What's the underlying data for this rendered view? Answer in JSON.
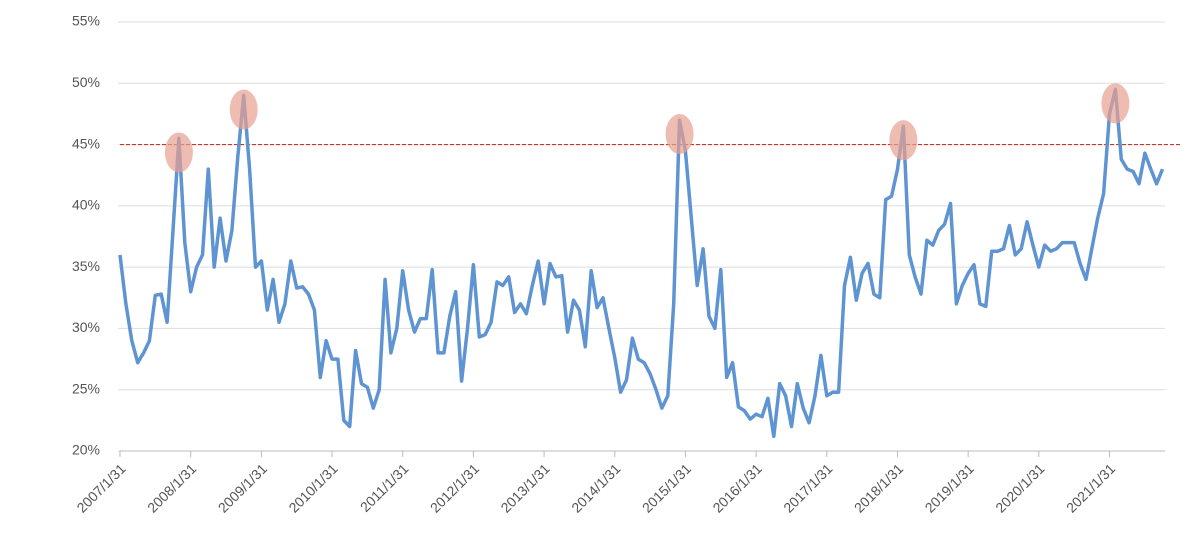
{
  "chart_data": {
    "type": "line",
    "categories": [
      "2007/1/31",
      null,
      null,
      null,
      null,
      null,
      null,
      null,
      null,
      null,
      null,
      null,
      "2008/1/31",
      null,
      null,
      null,
      null,
      null,
      null,
      null,
      null,
      null,
      null,
      null,
      "2009/1/31",
      null,
      null,
      null,
      null,
      null,
      null,
      null,
      null,
      null,
      null,
      null,
      "2010/1/31",
      null,
      null,
      null,
      null,
      null,
      null,
      null,
      null,
      null,
      null,
      null,
      "2011/1/31",
      null,
      null,
      null,
      null,
      null,
      null,
      null,
      null,
      null,
      null,
      null,
      "2012/1/31",
      null,
      null,
      null,
      null,
      null,
      null,
      null,
      null,
      null,
      null,
      null,
      "2013/1/31",
      null,
      null,
      null,
      null,
      null,
      null,
      null,
      null,
      null,
      null,
      null,
      "2014/1/31",
      null,
      null,
      null,
      null,
      null,
      null,
      null,
      null,
      null,
      null,
      null,
      "2015/1/31",
      null,
      null,
      null,
      null,
      null,
      null,
      null,
      null,
      null,
      null,
      null,
      "2016/1/31",
      null,
      null,
      null,
      null,
      null,
      null,
      null,
      null,
      null,
      null,
      null,
      "2017/1/31",
      null,
      null,
      null,
      null,
      null,
      null,
      null,
      null,
      null,
      null,
      null,
      "2018/1/31",
      null,
      null,
      null,
      null,
      null,
      null,
      null,
      null,
      null,
      null,
      null,
      "2019/1/31",
      null,
      null,
      null,
      null,
      null,
      null,
      null,
      null,
      null,
      null,
      null,
      "2020/1/31",
      null,
      null,
      null,
      null,
      null,
      null,
      null,
      null,
      null,
      null,
      null,
      "2021/1/31",
      null,
      null,
      null,
      null,
      null,
      null,
      null,
      null,
      null
    ],
    "series": [
      {
        "color": "#5f94d2",
        "values": [
          36,
          32,
          29,
          27.2,
          28,
          29,
          32.7,
          32.8,
          30.5,
          38,
          45.5,
          37,
          33,
          35,
          36,
          43,
          35,
          39,
          35.5,
          38,
          44,
          49,
          43,
          35,
          35.5,
          31.5,
          34,
          30.5,
          32,
          35.5,
          33.3,
          33.4,
          32.8,
          31.5,
          26,
          29,
          27.5,
          27.5,
          22.5,
          22,
          28.2,
          25.5,
          25.2,
          23.5,
          25,
          34,
          28,
          30,
          34.7,
          31.5,
          29.7,
          30.8,
          30.8,
          34.8,
          28,
          28,
          31,
          33,
          25.7,
          30,
          35.2,
          29.3,
          29.5,
          30.5,
          33.8,
          33.5,
          34.2,
          31.3,
          32,
          31.2,
          33.5,
          35.5,
          32,
          35.3,
          34.2,
          34.3,
          29.7,
          32.3,
          31.5,
          28.5,
          34.7,
          31.7,
          32.5,
          30,
          27.6,
          24.8,
          25.8,
          29.2,
          27.5,
          27.2,
          26.3,
          25,
          23.5,
          24.5,
          32,
          47,
          44.5,
          39,
          33.5,
          36.5,
          31,
          30,
          34.8,
          26,
          27.2,
          23.6,
          23.3,
          22.6,
          23,
          22.8,
          24.3,
          21.2,
          25.5,
          24.5,
          22,
          25.5,
          23.5,
          22.3,
          24.5,
          27.8,
          24.5,
          24.8,
          24.8,
          33.5,
          35.8,
          32.3,
          34.5,
          35.3,
          32.8,
          32.5,
          40.5,
          40.8,
          43,
          46.5,
          36,
          34.2,
          32.8,
          37.2,
          36.8,
          38,
          38.5,
          40.2,
          32,
          33.5,
          34.5,
          35.2,
          32,
          31.8,
          36.3,
          36.3,
          36.5,
          38.4,
          36,
          36.5,
          38.7,
          36.8,
          35,
          36.8,
          36.3,
          36.5,
          37,
          37,
          37,
          35.3,
          34,
          36.5,
          39,
          41,
          47.5,
          49.5,
          43.8,
          43,
          42.8,
          41.8,
          44.3,
          43,
          41.8,
          43
        ]
      }
    ],
    "ylim": [
      20,
      55
    ],
    "yticks": [
      {
        "value": 20,
        "label": "20%"
      },
      {
        "value": 25,
        "label": "25%"
      },
      {
        "value": 30,
        "label": "30%"
      },
      {
        "value": 35,
        "label": "35%"
      },
      {
        "value": 40,
        "label": "40%"
      },
      {
        "value": 45,
        "label": "45%"
      },
      {
        "value": 50,
        "label": "50%"
      },
      {
        "value": 55,
        "label": "55%"
      }
    ],
    "grid": true,
    "reference_line": {
      "value": 45,
      "color": "#c0392b"
    },
    "highlights": {
      "indices": [
        10,
        21,
        95,
        133,
        169
      ],
      "color": "#e8a090"
    }
  }
}
